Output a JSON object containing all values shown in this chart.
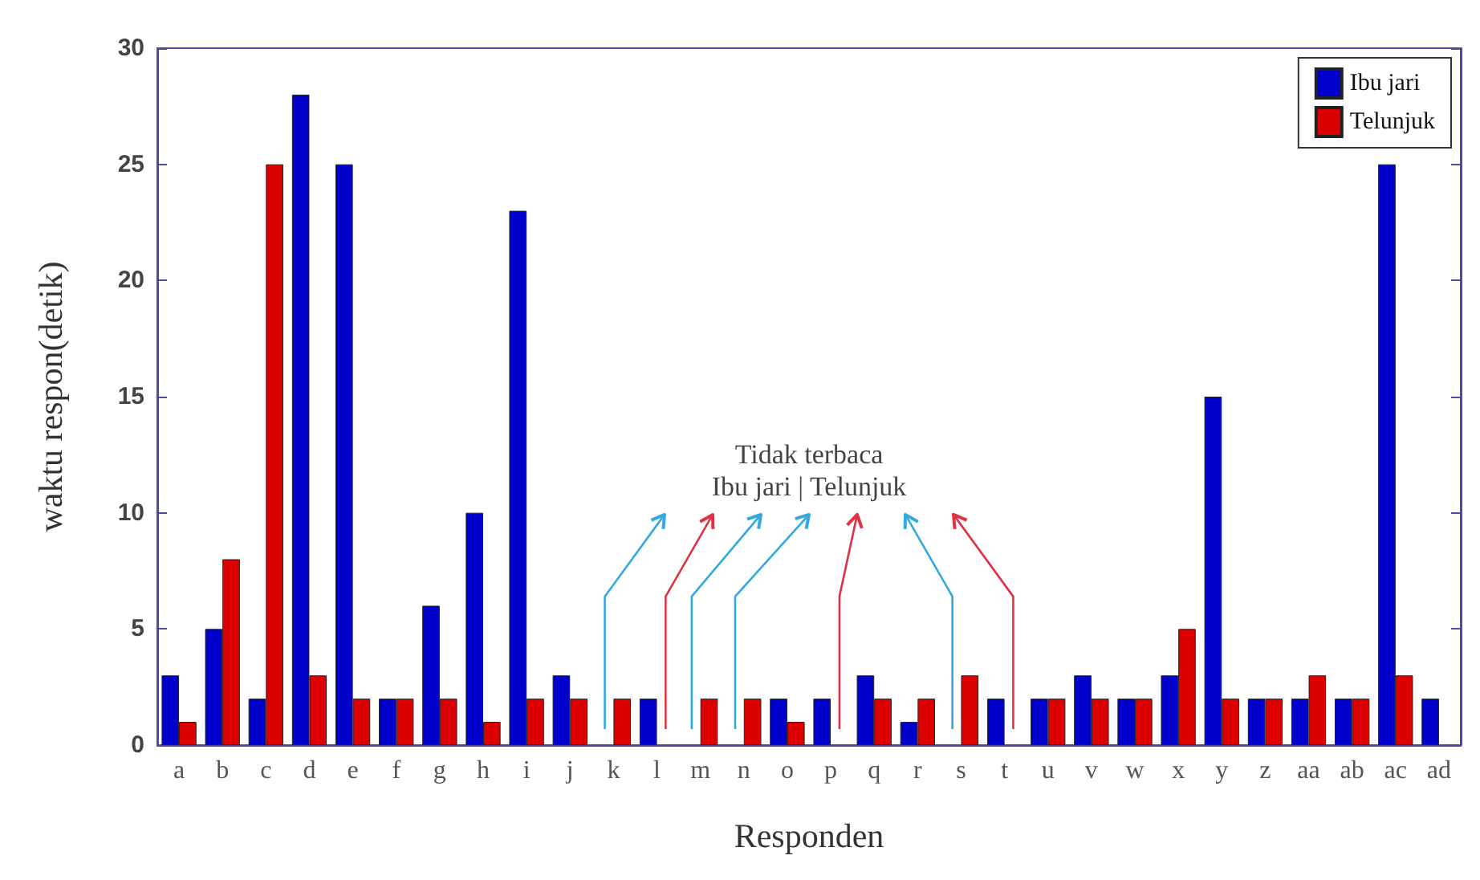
{
  "chart_data": {
    "type": "bar",
    "xlabel": "Responden",
    "ylabel": "waktu respon(detik)",
    "categories": [
      "a",
      "b",
      "c",
      "d",
      "e",
      "f",
      "g",
      "h",
      "i",
      "j",
      "k",
      "l",
      "m",
      "n",
      "o",
      "p",
      "q",
      "r",
      "s",
      "t",
      "u",
      "v",
      "w",
      "x",
      "y",
      "z",
      "aa",
      "ab",
      "ac",
      "ad"
    ],
    "series": [
      {
        "name": "Ibu jari",
        "color": "#0000cc",
        "values": [
          3,
          5,
          2,
          28,
          25,
          2,
          6,
          10,
          23,
          3,
          null,
          2,
          null,
          null,
          2,
          2,
          3,
          1,
          null,
          2,
          2,
          3,
          2,
          3,
          15,
          2,
          2,
          2,
          25,
          2
        ]
      },
      {
        "name": "Telunjuk",
        "color": "#dd0000",
        "values": [
          1,
          8,
          25,
          3,
          2,
          2,
          2,
          1,
          2,
          2,
          2,
          null,
          2,
          2,
          1,
          null,
          2,
          2,
          3,
          null,
          2,
          2,
          2,
          5,
          2,
          2,
          3,
          2,
          3,
          null
        ]
      }
    ],
    "ylim": [
      0,
      30
    ],
    "yticks": [
      0,
      5,
      10,
      15,
      20,
      25,
      30
    ],
    "grid": false,
    "legend": "top right",
    "annotations": [
      "Tidak terbaca",
      "Ibu jari | Telunjuk"
    ]
  }
}
